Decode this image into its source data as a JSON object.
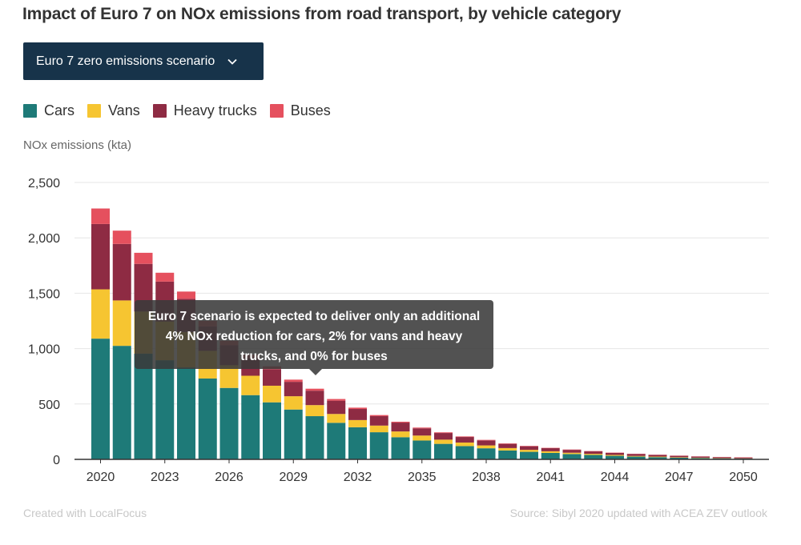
{
  "title": "Impact of Euro 7 on NOx emissions from road transport, by vehicle category",
  "dropdown": {
    "selected": "Euro 7 zero emissions scenario"
  },
  "footer": {
    "created_with": "Created with LocalFocus",
    "source": "Source:  Sibyl 2020 updated with ACEA ZEV outlook"
  },
  "tooltip": {
    "text": "Euro 7 scenario is expected to deliver only an additional 4% NOx reduction for cars, 2% for vans and heavy trucks, and 0% for buses"
  },
  "colors": {
    "cars": "#1e7a78",
    "vans": "#f6c531",
    "heavy_trucks": "#8e2b43",
    "buses": "#e5505e",
    "grid": "#e6e6e6",
    "axis": "#333333"
  },
  "chart_data": {
    "type": "bar",
    "stacked": true,
    "title": "Impact of Euro 7 on NOx emissions from road transport, by vehicle category",
    "ylabel": "NOx emissions (kta)",
    "xlabel": "",
    "ylim": [
      0,
      2500
    ],
    "yticks": [
      0,
      500,
      1000,
      1500,
      2000,
      2500
    ],
    "ytick_labels": [
      "0",
      "500",
      "1,000",
      "1,500",
      "2,000",
      "2,500"
    ],
    "xtick_labels": [
      "2020",
      "2023",
      "2026",
      "2029",
      "2032",
      "2035",
      "2038",
      "2041",
      "2044",
      "2047",
      "2050"
    ],
    "grid": true,
    "legend_position": "top-left",
    "categories": [
      "2020",
      "2021",
      "2022",
      "2023",
      "2024",
      "2025",
      "2026",
      "2027",
      "2028",
      "2029",
      "2030",
      "2031",
      "2032",
      "2033",
      "2034",
      "2035",
      "2036",
      "2037",
      "2038",
      "2039",
      "2040",
      "2041",
      "2042",
      "2043",
      "2044",
      "2045",
      "2046",
      "2047",
      "2048",
      "2049",
      "2050"
    ],
    "series": [
      {
        "name": "Cars",
        "key": "cars",
        "values": [
          1090,
          1025,
          955,
          895,
          830,
          730,
          645,
          580,
          515,
          450,
          390,
          330,
          290,
          245,
          200,
          170,
          140,
          120,
          100,
          80,
          68,
          58,
          48,
          40,
          32,
          25,
          20,
          15,
          12,
          9,
          7
        ]
      },
      {
        "name": "Vans",
        "key": "vans",
        "values": [
          445,
          410,
          380,
          350,
          320,
          250,
          205,
          175,
          150,
          120,
          100,
          80,
          65,
          60,
          52,
          45,
          38,
          32,
          26,
          22,
          18,
          15,
          12,
          10,
          8,
          6,
          5,
          4,
          3,
          2,
          2
        ]
      },
      {
        "name": "Heavy trucks",
        "key": "heavy_trucks",
        "values": [
          590,
          510,
          430,
          360,
          300,
          220,
          180,
          160,
          150,
          130,
          130,
          120,
          100,
          85,
          80,
          65,
          60,
          50,
          45,
          38,
          32,
          28,
          26,
          22,
          18,
          18,
          15,
          13,
          10,
          9,
          8
        ]
      },
      {
        "name": "Buses",
        "key": "buses",
        "values": [
          140,
          120,
          100,
          80,
          65,
          50,
          40,
          30,
          25,
          20,
          18,
          15,
          12,
          10,
          8,
          7,
          6,
          5,
          5,
          4,
          4,
          3,
          3,
          3,
          3,
          2,
          2,
          2,
          2,
          2,
          2
        ]
      }
    ]
  }
}
